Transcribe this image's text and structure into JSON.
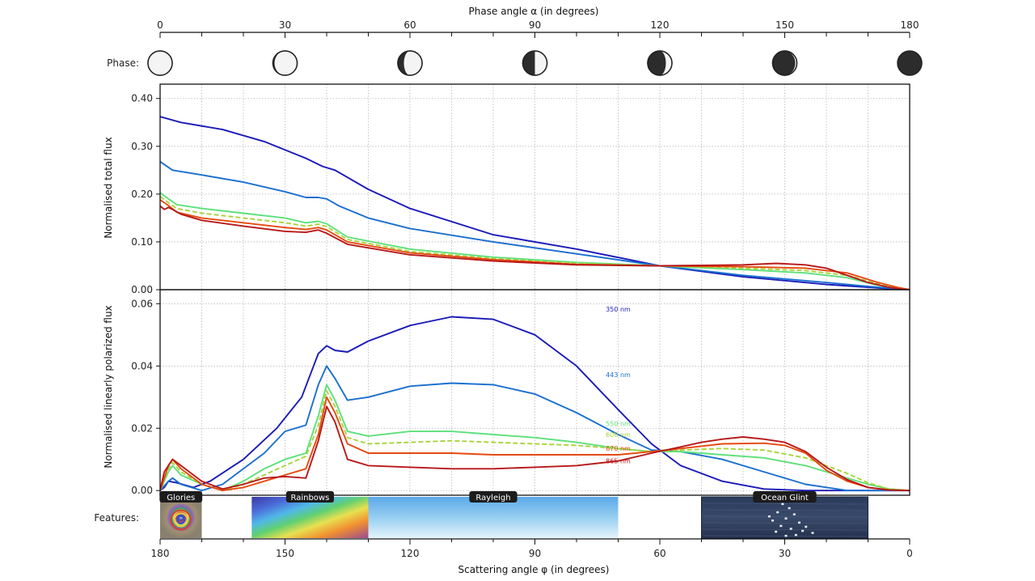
{
  "chart_data": {
    "type": "line",
    "top_axis": {
      "title": "Phase angle α (in degrees)",
      "range": [
        0,
        180
      ],
      "ticks": [
        "0",
        "30",
        "60",
        "90",
        "120",
        "150",
        "180"
      ]
    },
    "bottom_axis": {
      "title": "Scattering angle φ (in degrees)",
      "range": [
        180,
        0
      ],
      "ticks": [
        "180",
        "150",
        "120",
        "90",
        "60",
        "30",
        "0"
      ]
    },
    "phase_row": {
      "label": "Phase:",
      "phase_angles": [
        0,
        30,
        60,
        90,
        120,
        150,
        180
      ]
    },
    "panels": [
      {
        "name": "total-flux",
        "ylabel": "Normalised total flux",
        "ylim": [
          0,
          0.43
        ],
        "yticks": [
          "0.00",
          "0.10",
          "0.20",
          "0.30",
          "0.40"
        ],
        "ytick_values": [
          0,
          0.1,
          0.2,
          0.3,
          0.4
        ],
        "grid": true,
        "series": [
          {
            "name": "350 nm",
            "color": "#1a1ab8",
            "dashed": false,
            "x": [
              0,
              5,
              15,
              25,
              35,
              39,
              42,
              50,
              60,
              80,
              100,
              120,
              140,
              160,
              170,
              177,
              180
            ],
            "y": [
              0.362,
              0.35,
              0.335,
              0.31,
              0.275,
              0.258,
              0.25,
              0.21,
              0.17,
              0.115,
              0.085,
              0.05,
              0.027,
              0.011,
              0.005,
              0.001,
              0.0
            ]
          },
          {
            "name": "443 nm",
            "color": "#1a6fd0",
            "dashed": false,
            "x": [
              0,
              3,
              10,
              20,
              30,
              35,
              38,
              40,
              43,
              50,
              60,
              80,
              100,
              120,
              140,
              160,
              170,
              177,
              180
            ],
            "y": [
              0.268,
              0.25,
              0.24,
              0.225,
              0.205,
              0.193,
              0.193,
              0.19,
              0.175,
              0.15,
              0.128,
              0.1,
              0.075,
              0.05,
              0.03,
              0.015,
              0.007,
              0.002,
              0.0
            ]
          },
          {
            "name": "550 nm",
            "color": "#5de07a",
            "dashed": false,
            "x": [
              0,
              2,
              4,
              10,
              20,
              30,
              35,
              38,
              40,
              45,
              60,
              80,
              100,
              120,
              140,
              155,
              165,
              172,
              177,
              180
            ],
            "y": [
              0.203,
              0.19,
              0.178,
              0.17,
              0.16,
              0.15,
              0.14,
              0.143,
              0.138,
              0.11,
              0.085,
              0.068,
              0.057,
              0.05,
              0.042,
              0.035,
              0.025,
              0.01,
              0.003,
              0.0
            ]
          },
          {
            "name": "600 nm",
            "color": "#a8d43a",
            "dashed": true,
            "x": [
              0,
              2,
              4,
              10,
              20,
              30,
              35,
              38,
              40,
              45,
              60,
              80,
              100,
              120,
              140,
              155,
              165,
              172,
              177,
              180
            ],
            "y": [
              0.195,
              0.182,
              0.17,
              0.16,
              0.15,
              0.14,
              0.133,
              0.137,
              0.132,
              0.105,
              0.08,
              0.065,
              0.055,
              0.05,
              0.045,
              0.04,
              0.03,
              0.013,
              0.004,
              0.0
            ]
          },
          {
            "name": "670 nm",
            "color": "#e64a10",
            "dashed": false,
            "x": [
              0,
              2,
              4,
              10,
              20,
              30,
              35,
              38,
              40,
              45,
              60,
              80,
              100,
              120,
              140,
              155,
              165,
              172,
              177,
              180
            ],
            "y": [
              0.188,
              0.176,
              0.162,
              0.15,
              0.14,
              0.13,
              0.126,
              0.13,
              0.125,
              0.1,
              0.077,
              0.063,
              0.053,
              0.05,
              0.048,
              0.045,
              0.035,
              0.016,
              0.005,
              0.0
            ]
          },
          {
            "name": "865 nm",
            "color": "#b81818",
            "dashed": false,
            "x": [
              0,
              1,
              2,
              3,
              5,
              10,
              20,
              30,
              35,
              38,
              40,
              45,
              60,
              80,
              100,
              120,
              140,
              148,
              155,
              160,
              165,
              170,
              175,
              178,
              180
            ],
            "y": [
              0.175,
              0.168,
              0.172,
              0.168,
              0.158,
              0.145,
              0.133,
              0.122,
              0.12,
              0.125,
              0.118,
              0.095,
              0.073,
              0.06,
              0.052,
              0.05,
              0.052,
              0.055,
              0.052,
              0.045,
              0.03,
              0.015,
              0.005,
              0.001,
              0.0
            ]
          }
        ]
      },
      {
        "name": "polarized-flux",
        "ylabel": "Normalised linearly polarized flux",
        "ylim": [
          -0.0015,
          0.0645
        ],
        "yticks": [
          "0.00",
          "0.02",
          "0.04",
          "0.06"
        ],
        "ytick_values": [
          0,
          0.02,
          0.04,
          0.06
        ],
        "grid": true,
        "series": [
          {
            "name": "350 nm",
            "label": "350 nm",
            "label_x": 70,
            "label_y": 0.0575,
            "color": "#1a1ab8",
            "dashed": false,
            "x": [
              0,
              1,
              2,
              4,
              8,
              12,
              20,
              28,
              34,
              38,
              40,
              42,
              45,
              50,
              60,
              70,
              80,
              90,
              100,
              110,
              118,
              125,
              135,
              145,
              155,
              165,
              175,
              180
            ],
            "y": [
              0.0,
              0.001,
              0.003,
              0.0025,
              0.001,
              0.003,
              0.01,
              0.02,
              0.03,
              0.044,
              0.0465,
              0.045,
              0.0445,
              0.048,
              0.053,
              0.0558,
              0.055,
              0.05,
              0.04,
              0.026,
              0.015,
              0.008,
              0.003,
              0.0005,
              0.0,
              0.0,
              0.0,
              0.0
            ]
          },
          {
            "name": "443 nm",
            "label": "443 nm",
            "label_x": 70,
            "label_y": 0.0365,
            "color": "#1a6fd0",
            "dashed": false,
            "x": [
              0,
              2,
              3,
              5,
              10,
              15,
              20,
              25,
              30,
              35,
              38,
              40,
              42,
              45,
              50,
              60,
              70,
              80,
              90,
              100,
              110,
              118,
              125,
              135,
              145,
              155,
              165,
              175,
              180
            ],
            "y": [
              0.0,
              0.003,
              0.004,
              0.002,
              0.0,
              0.002,
              0.007,
              0.012,
              0.019,
              0.021,
              0.034,
              0.04,
              0.036,
              0.029,
              0.03,
              0.0335,
              0.0345,
              0.034,
              0.031,
              0.025,
              0.018,
              0.013,
              0.0125,
              0.01,
              0.006,
              0.002,
              0.0,
              0.0,
              0.0
            ]
          },
          {
            "name": "550 nm",
            "label": "550 nm",
            "label_x": 70,
            "label_y": 0.0207,
            "color": "#5de07a",
            "dashed": false,
            "x": [
              0,
              2,
              3,
              5,
              10,
              15,
              20,
              25,
              30,
              35,
              38,
              40,
              42,
              45,
              50,
              60,
              70,
              80,
              90,
              100,
              110,
              118,
              125,
              135,
              145,
              155,
              165,
              170,
              175,
              180
            ],
            "y": [
              0.0,
              0.006,
              0.008,
              0.005,
              0.002,
              0.0,
              0.003,
              0.007,
              0.01,
              0.012,
              0.024,
              0.034,
              0.029,
              0.019,
              0.0175,
              0.019,
              0.019,
              0.018,
              0.017,
              0.0155,
              0.0135,
              0.0125,
              0.0125,
              0.0115,
              0.0105,
              0.008,
              0.004,
              0.002,
              0.0005,
              0.0
            ]
          },
          {
            "name": "600 nm",
            "label": "600 nm",
            "label_x": 70,
            "label_y": 0.0172,
            "color": "#a8d43a",
            "dashed": true,
            "x": [
              0,
              2,
              3,
              5,
              10,
              15,
              20,
              25,
              30,
              35,
              38,
              40,
              42,
              45,
              50,
              60,
              70,
              80,
              90,
              100,
              110,
              118,
              125,
              135,
              145,
              155,
              165,
              170,
              175,
              180
            ],
            "y": [
              0.0,
              0.007,
              0.009,
              0.006,
              0.002,
              0.0,
              0.002,
              0.005,
              0.008,
              0.011,
              0.021,
              0.032,
              0.027,
              0.017,
              0.015,
              0.0155,
              0.016,
              0.0155,
              0.015,
              0.0145,
              0.0135,
              0.0125,
              0.013,
              0.0135,
              0.013,
              0.0105,
              0.0055,
              0.0025,
              0.0005,
              0.0
            ]
          },
          {
            "name": "670 nm",
            "label": "670 nm",
            "label_x": 70,
            "label_y": 0.0128,
            "color": "#e64a10",
            "dashed": false,
            "x": [
              0,
              2,
              3,
              5,
              10,
              15,
              20,
              25,
              30,
              35,
              38,
              40,
              42,
              45,
              50,
              60,
              70,
              80,
              90,
              100,
              110,
              118,
              125,
              135,
              145,
              150,
              155,
              160,
              165,
              170,
              175,
              180
            ],
            "y": [
              0.0,
              0.008,
              0.01,
              0.007,
              0.002,
              0.0,
              0.001,
              0.003,
              0.005,
              0.007,
              0.018,
              0.03,
              0.025,
              0.015,
              0.012,
              0.012,
              0.012,
              0.0115,
              0.0115,
              0.0115,
              0.0115,
              0.0125,
              0.0135,
              0.015,
              0.0152,
              0.0145,
              0.012,
              0.0065,
              0.003,
              0.001,
              0.0002,
              0.0
            ]
          },
          {
            "name": "865 nm",
            "label": "865 nm",
            "label_x": 70,
            "label_y": 0.0088,
            "color": "#b81818",
            "dashed": false,
            "x": [
              0,
              1,
              2,
              3,
              5,
              10,
              15,
              20,
              25,
              30,
              35,
              38,
              40,
              42,
              45,
              50,
              60,
              70,
              80,
              90,
              100,
              110,
              118,
              125,
              130,
              135,
              140,
              145,
              150,
              155,
              160,
              165,
              170,
              175,
              180
            ],
            "y": [
              0.0,
              0.006,
              0.008,
              0.01,
              0.008,
              0.003,
              0.0005,
              0.002,
              0.004,
              0.0045,
              0.004,
              0.016,
              0.027,
              0.022,
              0.01,
              0.008,
              0.0075,
              0.007,
              0.007,
              0.0075,
              0.008,
              0.0095,
              0.012,
              0.014,
              0.0155,
              0.0165,
              0.0172,
              0.0165,
              0.0155,
              0.0125,
              0.0075,
              0.0035,
              0.001,
              0.0002,
              0.0
            ]
          }
        ]
      }
    ],
    "features": {
      "label": "Features:",
      "items": [
        {
          "name": "Glories",
          "start": 180,
          "end": 170
        },
        {
          "name": "Rainbows",
          "start": 158,
          "end": 130
        },
        {
          "name": "Rayleigh",
          "start": 130,
          "end": 70
        },
        {
          "name": "Ocean Glint",
          "start": 50,
          "end": 10
        }
      ]
    }
  }
}
